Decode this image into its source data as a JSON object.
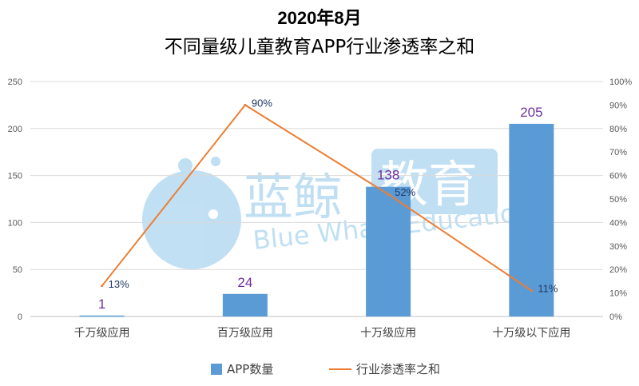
{
  "chart_data": {
    "type": "bar+line",
    "title_line1": "2020年8月",
    "title_line2": "不同量级儿童教育APP行业渗透率之和",
    "categories": [
      "千万级应用",
      "百万级应用",
      "十万级应用",
      "十万级以下应用"
    ],
    "series": [
      {
        "name": "APP数量",
        "kind": "bar",
        "axis": "left",
        "color": "#5b9bd5",
        "values": [
          1,
          24,
          138,
          205
        ],
        "labels": [
          "1",
          "24",
          "138",
          "205"
        ]
      },
      {
        "name": "行业渗透率之和",
        "kind": "line",
        "axis": "right",
        "color": "#ed7d31",
        "values": [
          13,
          90,
          52,
          11
        ],
        "labels": [
          "13%",
          "90%",
          "52%",
          "11%"
        ]
      }
    ],
    "y_left": {
      "min": 0,
      "max": 250,
      "ticks": [
        "0",
        "50",
        "100",
        "150",
        "200",
        "250"
      ]
    },
    "y_right": {
      "min": 0,
      "max": 100,
      "ticks": [
        "0%",
        "10%",
        "20%",
        "30%",
        "40%",
        "50%",
        "60%",
        "70%",
        "80%",
        "90%",
        "100%"
      ]
    },
    "grid": true,
    "legend_position": "bottom",
    "bar_label_color": "#7030a0",
    "line_label_color": "#1f3864"
  },
  "watermark": {
    "cn_text": "蓝鲸",
    "cn_text_highlight": "教育",
    "en_text": "Blue Whale Education",
    "color": "#8ec6ea"
  }
}
